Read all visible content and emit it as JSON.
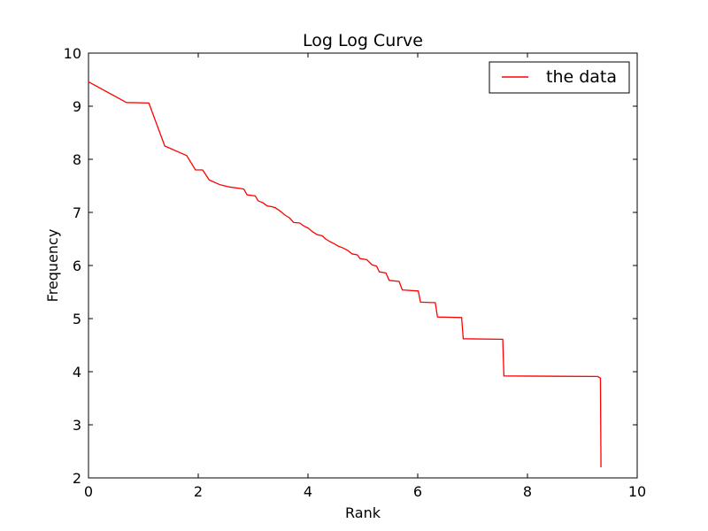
{
  "chart_data": {
    "type": "line",
    "title": "Log Log Curve",
    "xlabel": "Rank",
    "ylabel": "Frequency",
    "xlim": [
      0,
      10
    ],
    "ylim": [
      2,
      10
    ],
    "xticks": [
      "0",
      "2",
      "4",
      "6",
      "8",
      "10"
    ],
    "yticks": [
      "2",
      "3",
      "4",
      "5",
      "6",
      "7",
      "8",
      "9",
      "10"
    ],
    "grid": false,
    "legend_position": "top-right",
    "series": [
      {
        "name": "the data",
        "color": "#ff0000",
        "points": [
          [
            0.0,
            9.46
          ],
          [
            0.69,
            9.07
          ],
          [
            1.1,
            9.06
          ],
          [
            1.39,
            8.25
          ],
          [
            1.79,
            8.07
          ],
          [
            1.95,
            7.8
          ],
          [
            2.08,
            7.8
          ],
          [
            2.2,
            7.61
          ],
          [
            2.4,
            7.52
          ],
          [
            2.56,
            7.48
          ],
          [
            2.77,
            7.45
          ],
          [
            2.83,
            7.44
          ],
          [
            2.89,
            7.33
          ],
          [
            3.04,
            7.31
          ],
          [
            3.09,
            7.22
          ],
          [
            3.18,
            7.18
          ],
          [
            3.26,
            7.12
          ],
          [
            3.33,
            7.11
          ],
          [
            3.4,
            7.09
          ],
          [
            3.5,
            7.02
          ],
          [
            3.58,
            6.95
          ],
          [
            3.66,
            6.9
          ],
          [
            3.74,
            6.81
          ],
          [
            3.85,
            6.8
          ],
          [
            3.93,
            6.74
          ],
          [
            4.01,
            6.7
          ],
          [
            4.09,
            6.63
          ],
          [
            4.17,
            6.58
          ],
          [
            4.26,
            6.56
          ],
          [
            4.32,
            6.5
          ],
          [
            4.4,
            6.45
          ],
          [
            4.48,
            6.41
          ],
          [
            4.56,
            6.36
          ],
          [
            4.64,
            6.33
          ],
          [
            4.73,
            6.28
          ],
          [
            4.8,
            6.22
          ],
          [
            4.9,
            6.2
          ],
          [
            4.95,
            6.13
          ],
          [
            5.07,
            6.11
          ],
          [
            5.17,
            6.01
          ],
          [
            5.25,
            5.99
          ],
          [
            5.3,
            5.88
          ],
          [
            5.42,
            5.86
          ],
          [
            5.48,
            5.72
          ],
          [
            5.66,
            5.7
          ],
          [
            5.72,
            5.54
          ],
          [
            6.01,
            5.52
          ],
          [
            6.05,
            5.31
          ],
          [
            6.32,
            5.3
          ],
          [
            6.36,
            5.03
          ],
          [
            6.8,
            5.02
          ],
          [
            6.83,
            4.62
          ],
          [
            7.55,
            4.61
          ],
          [
            7.57,
            3.92
          ],
          [
            9.28,
            3.91
          ],
          [
            9.33,
            3.88
          ],
          [
            9.34,
            2.2
          ]
        ]
      }
    ]
  }
}
